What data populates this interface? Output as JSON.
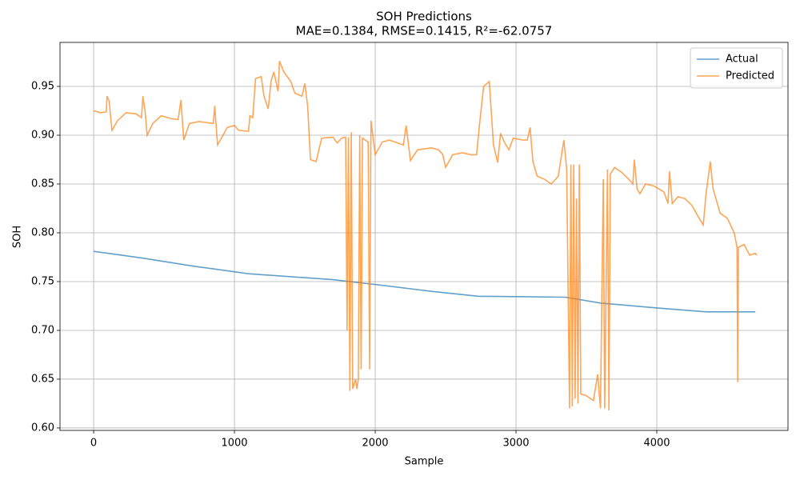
{
  "chart_data": {
    "type": "line",
    "title": "SOH Predictions",
    "subtitle": "MAE=0.1384, RMSE=0.1415, R²=-62.0757",
    "x_label": "Sample",
    "y_label": "SOH",
    "xlim": [
      -239,
      4932
    ],
    "ylim": [
      0.5975,
      0.9951
    ],
    "xticks": [
      0,
      1000,
      2000,
      3000,
      4000
    ],
    "yticks": [
      {
        "value": 0.6,
        "label": "0.60"
      },
      0.65,
      {
        "value": 0.7,
        "label": "0.70"
      },
      0.75,
      {
        "value": 0.8,
        "label": "0.80"
      },
      0.85,
      {
        "value": 0.9,
        "label": "0.90"
      },
      0.95
    ],
    "grid": true,
    "legend": "upper right",
    "series": [
      {
        "name": "Actual",
        "color": "#1f77b4",
        "x": [
          0,
          100,
          350,
          700,
          1100,
          1700,
          2000,
          2400,
          2730,
          3350,
          3600,
          4000,
          4350,
          4700
        ],
        "values": [
          0.781,
          0.779,
          0.774,
          0.766,
          0.758,
          0.752,
          0.747,
          0.74,
          0.735,
          0.734,
          0.728,
          0.723,
          0.719,
          0.719
        ]
      },
      {
        "name": "Predicted",
        "color": "#ff7f0e",
        "x": [
          0,
          50,
          90,
          95,
          110,
          130,
          170,
          230,
          300,
          340,
          350,
          365,
          380,
          420,
          480,
          550,
          600,
          620,
          640,
          680,
          750,
          850,
          860,
          880,
          950,
          1000,
          1030,
          1100,
          1110,
          1130,
          1150,
          1190,
          1210,
          1240,
          1260,
          1280,
          1310,
          1320,
          1350,
          1400,
          1430,
          1480,
          1500,
          1520,
          1540,
          1580,
          1620,
          1700,
          1730,
          1760,
          1790,
          1800,
          1810,
          1820,
          1830,
          1840,
          1860,
          1870,
          1880,
          1890,
          1900,
          1910,
          1950,
          1960,
          1970,
          2000,
          2050,
          2100,
          2200,
          2220,
          2250,
          2300,
          2400,
          2450,
          2480,
          2500,
          2550,
          2620,
          2680,
          2720,
          2740,
          2770,
          2810,
          2840,
          2870,
          2890,
          2920,
          2950,
          2980,
          3050,
          3080,
          3100,
          3120,
          3150,
          3200,
          3250,
          3300,
          3340,
          3360,
          3380,
          3390,
          3400,
          3410,
          3420,
          3430,
          3440,
          3450,
          3460,
          3500,
          3550,
          3580,
          3600,
          3620,
          3630,
          3650,
          3660,
          3670,
          3700,
          3750,
          3800,
          3830,
          3840,
          3860,
          3880,
          3920,
          3980,
          4050,
          4080,
          4090,
          4110,
          4150,
          4200,
          4250,
          4300,
          4330,
          4350,
          4380,
          4400,
          4450,
          4500,
          4550,
          4570,
          4575,
          4580,
          4620,
          4660,
          4700,
          4710
        ],
        "values": [
          0.925,
          0.923,
          0.924,
          0.94,
          0.935,
          0.905,
          0.915,
          0.923,
          0.922,
          0.918,
          0.94,
          0.925,
          0.9,
          0.912,
          0.92,
          0.917,
          0.916,
          0.936,
          0.895,
          0.912,
          0.914,
          0.912,
          0.93,
          0.89,
          0.908,
          0.91,
          0.905,
          0.904,
          0.92,
          0.918,
          0.958,
          0.96,
          0.94,
          0.927,
          0.955,
          0.965,
          0.945,
          0.976,
          0.965,
          0.955,
          0.943,
          0.94,
          0.953,
          0.93,
          0.875,
          0.873,
          0.897,
          0.898,
          0.892,
          0.897,
          0.898,
          0.7,
          0.898,
          0.638,
          0.903,
          0.64,
          0.65,
          0.64,
          0.65,
          0.9,
          0.66,
          0.897,
          0.893,
          0.66,
          0.915,
          0.88,
          0.893,
          0.895,
          0.89,
          0.91,
          0.874,
          0.885,
          0.887,
          0.885,
          0.88,
          0.867,
          0.88,
          0.882,
          0.88,
          0.88,
          0.91,
          0.95,
          0.955,
          0.89,
          0.872,
          0.902,
          0.892,
          0.885,
          0.897,
          0.895,
          0.895,
          0.908,
          0.873,
          0.858,
          0.855,
          0.85,
          0.858,
          0.895,
          0.865,
          0.62,
          0.87,
          0.622,
          0.87,
          0.63,
          0.835,
          0.625,
          0.87,
          0.635,
          0.633,
          0.628,
          0.655,
          0.62,
          0.855,
          0.62,
          0.865,
          0.618,
          0.86,
          0.867,
          0.862,
          0.855,
          0.85,
          0.875,
          0.845,
          0.84,
          0.85,
          0.848,
          0.842,
          0.83,
          0.863,
          0.83,
          0.837,
          0.835,
          0.828,
          0.815,
          0.808,
          0.84,
          0.873,
          0.845,
          0.82,
          0.815,
          0.8,
          0.785,
          0.647,
          0.785,
          0.788,
          0.777,
          0.779,
          0.777
        ]
      }
    ]
  }
}
